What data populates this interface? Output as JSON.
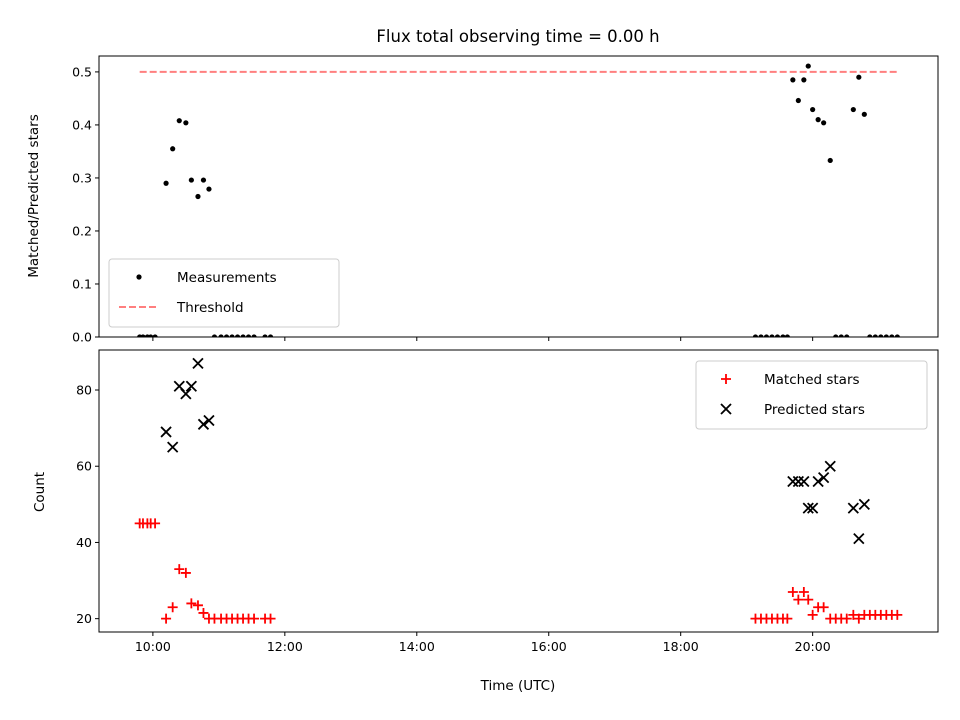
{
  "chart_data": [
    {
      "type": "scatter",
      "title": "Flux total observing time = 0.00 h",
      "ylabel": "Matched/Predicted stars",
      "xlabel": "",
      "xlim": [
        "09:11",
        "21:54"
      ],
      "ylim": [
        0.0,
        0.53
      ],
      "yticks": [
        "0.0",
        "0.1",
        "0.2",
        "0.3",
        "0.4",
        "0.5"
      ],
      "legend_position": "lower-left",
      "series": [
        {
          "name": "Measurements",
          "marker": "dot",
          "color": "#000000",
          "points": [
            {
              "x": "09:48",
              "y": 0.0
            },
            {
              "x": "09:51",
              "y": 0.0
            },
            {
              "x": "09:55",
              "y": 0.0
            },
            {
              "x": "09:58",
              "y": 0.0
            },
            {
              "x": "10:02",
              "y": 0.0
            },
            {
              "x": "10:12",
              "y": 0.29
            },
            {
              "x": "10:18",
              "y": 0.355
            },
            {
              "x": "10:24",
              "y": 0.408
            },
            {
              "x": "10:30",
              "y": 0.404
            },
            {
              "x": "10:35",
              "y": 0.296
            },
            {
              "x": "10:41",
              "y": 0.265
            },
            {
              "x": "10:46",
              "y": 0.296
            },
            {
              "x": "10:51",
              "y": 0.279
            },
            {
              "x": "10:56",
              "y": 0.0
            },
            {
              "x": "11:02",
              "y": 0.0
            },
            {
              "x": "11:07",
              "y": 0.0
            },
            {
              "x": "11:12",
              "y": 0.0
            },
            {
              "x": "11:17",
              "y": 0.0
            },
            {
              "x": "11:22",
              "y": 0.0
            },
            {
              "x": "11:27",
              "y": 0.0
            },
            {
              "x": "11:32",
              "y": 0.0
            },
            {
              "x": "11:42",
              "y": 0.0
            },
            {
              "x": "11:47",
              "y": 0.0
            },
            {
              "x": "19:08",
              "y": 0.0
            },
            {
              "x": "19:13",
              "y": 0.0
            },
            {
              "x": "19:18",
              "y": 0.0
            },
            {
              "x": "19:23",
              "y": 0.0
            },
            {
              "x": "19:28",
              "y": 0.0
            },
            {
              "x": "19:33",
              "y": 0.0
            },
            {
              "x": "19:37",
              "y": 0.0
            },
            {
              "x": "19:42",
              "y": 0.485
            },
            {
              "x": "19:47",
              "y": 0.446
            },
            {
              "x": "19:52",
              "y": 0.485
            },
            {
              "x": "19:56",
              "y": 0.511
            },
            {
              "x": "20:00",
              "y": 0.429
            },
            {
              "x": "20:05",
              "y": 0.41
            },
            {
              "x": "20:10",
              "y": 0.404
            },
            {
              "x": "20:16",
              "y": 0.333
            },
            {
              "x": "20:21",
              "y": 0.0
            },
            {
              "x": "20:26",
              "y": 0.0
            },
            {
              "x": "20:31",
              "y": 0.0
            },
            {
              "x": "20:37",
              "y": 0.429
            },
            {
              "x": "20:42",
              "y": 0.49
            },
            {
              "x": "20:47",
              "y": 0.42
            },
            {
              "x": "20:52",
              "y": 0.0
            },
            {
              "x": "20:57",
              "y": 0.0
            },
            {
              "x": "21:02",
              "y": 0.0
            },
            {
              "x": "21:07",
              "y": 0.0
            },
            {
              "x": "21:12",
              "y": 0.0
            },
            {
              "x": "21:17",
              "y": 0.0
            }
          ]
        },
        {
          "name": "Threshold",
          "marker": "dashed-line",
          "color": "#ff7f7f",
          "points": [
            {
              "x": "09:48",
              "y": 0.5
            },
            {
              "x": "21:17",
              "y": 0.5
            }
          ]
        }
      ]
    },
    {
      "type": "scatter",
      "title": "",
      "ylabel": "Count",
      "xlabel": "Time (UTC)",
      "xlim": [
        "09:11",
        "21:54"
      ],
      "ylim": [
        16.5,
        90.5
      ],
      "yticks": [
        "20",
        "40",
        "60",
        "80"
      ],
      "xticks": [
        "10:00",
        "12:00",
        "14:00",
        "16:00",
        "18:00",
        "20:00"
      ],
      "legend_position": "upper-right",
      "series": [
        {
          "name": "Matched stars",
          "marker": "plus",
          "color": "#ff0000",
          "points": [
            {
              "x": "09:48",
              "y": 45
            },
            {
              "x": "09:51",
              "y": 45
            },
            {
              "x": "09:55",
              "y": 45
            },
            {
              "x": "09:58",
              "y": 45
            },
            {
              "x": "10:02",
              "y": 45
            },
            {
              "x": "10:12",
              "y": 20
            },
            {
              "x": "10:18",
              "y": 23
            },
            {
              "x": "10:24",
              "y": 33
            },
            {
              "x": "10:30",
              "y": 32
            },
            {
              "x": "10:35",
              "y": 24
            },
            {
              "x": "10:41",
              "y": 23.5
            },
            {
              "x": "10:46",
              "y": 21.5
            },
            {
              "x": "10:51",
              "y": 20
            },
            {
              "x": "10:56",
              "y": 20
            },
            {
              "x": "11:02",
              "y": 20
            },
            {
              "x": "11:07",
              "y": 20
            },
            {
              "x": "11:12",
              "y": 20
            },
            {
              "x": "11:17",
              "y": 20
            },
            {
              "x": "11:22",
              "y": 20
            },
            {
              "x": "11:27",
              "y": 20
            },
            {
              "x": "11:32",
              "y": 20
            },
            {
              "x": "11:42",
              "y": 20
            },
            {
              "x": "11:47",
              "y": 20
            },
            {
              "x": "19:08",
              "y": 20
            },
            {
              "x": "19:13",
              "y": 20
            },
            {
              "x": "19:18",
              "y": 20
            },
            {
              "x": "19:23",
              "y": 20
            },
            {
              "x": "19:28",
              "y": 20
            },
            {
              "x": "19:33",
              "y": 20
            },
            {
              "x": "19:37",
              "y": 20
            },
            {
              "x": "19:42",
              "y": 27
            },
            {
              "x": "19:47",
              "y": 25
            },
            {
              "x": "19:52",
              "y": 27
            },
            {
              "x": "19:56",
              "y": 25
            },
            {
              "x": "20:00",
              "y": 21
            },
            {
              "x": "20:05",
              "y": 23
            },
            {
              "x": "20:10",
              "y": 23
            },
            {
              "x": "20:16",
              "y": 20
            },
            {
              "x": "20:21",
              "y": 20
            },
            {
              "x": "20:26",
              "y": 20
            },
            {
              "x": "20:31",
              "y": 20
            },
            {
              "x": "20:37",
              "y": 21
            },
            {
              "x": "20:42",
              "y": 20
            },
            {
              "x": "20:47",
              "y": 21
            },
            {
              "x": "20:52",
              "y": 21
            },
            {
              "x": "20:57",
              "y": 21
            },
            {
              "x": "21:02",
              "y": 21
            },
            {
              "x": "21:07",
              "y": 21
            },
            {
              "x": "21:12",
              "y": 21
            },
            {
              "x": "21:17",
              "y": 21
            }
          ]
        },
        {
          "name": "Predicted stars",
          "marker": "x",
          "color": "#000000",
          "points": [
            {
              "x": "10:12",
              "y": 69
            },
            {
              "x": "10:18",
              "y": 65
            },
            {
              "x": "10:24",
              "y": 81
            },
            {
              "x": "10:30",
              "y": 79
            },
            {
              "x": "10:35",
              "y": 81
            },
            {
              "x": "10:41",
              "y": 87
            },
            {
              "x": "10:46",
              "y": 71
            },
            {
              "x": "10:51",
              "y": 72
            },
            {
              "x": "19:42",
              "y": 56
            },
            {
              "x": "19:47",
              "y": 56
            },
            {
              "x": "19:52",
              "y": 56
            },
            {
              "x": "19:56",
              "y": 49
            },
            {
              "x": "20:00",
              "y": 49
            },
            {
              "x": "20:05",
              "y": 56
            },
            {
              "x": "20:10",
              "y": 57
            },
            {
              "x": "20:16",
              "y": 60
            },
            {
              "x": "20:37",
              "y": 49
            },
            {
              "x": "20:42",
              "y": 41
            },
            {
              "x": "20:47",
              "y": 50
            }
          ]
        }
      ]
    }
  ]
}
